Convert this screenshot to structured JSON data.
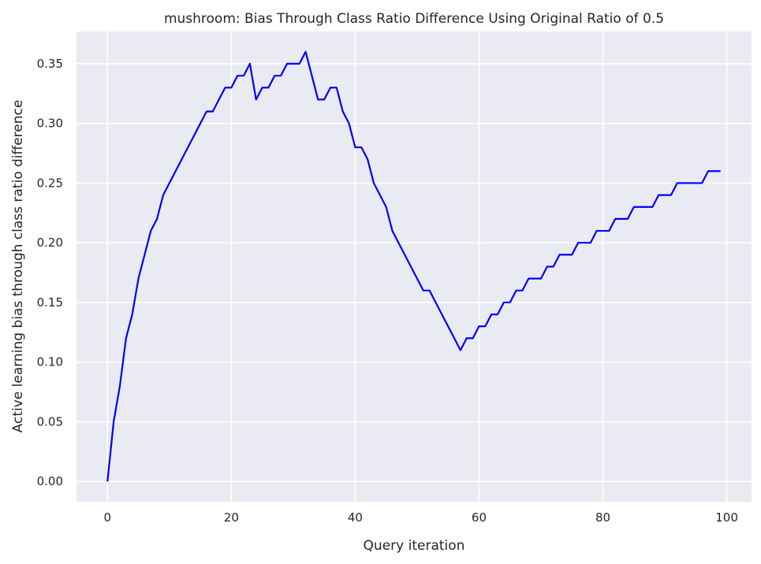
{
  "chart_data": {
    "type": "line",
    "title": "mushroom: Bias Through Class Ratio Difference Using Original Ratio of 0.5",
    "xlabel": "Query iteration",
    "ylabel": "Active learning bias through class ratio difference",
    "xlim": [
      -5,
      104
    ],
    "ylim": [
      -0.017,
      0.377
    ],
    "xticks": [
      0,
      20,
      40,
      60,
      80,
      100
    ],
    "xtick_labels": [
      "0",
      "20",
      "40",
      "60",
      "80",
      "100"
    ],
    "yticks": [
      0.0,
      0.05,
      0.1,
      0.15,
      0.2,
      0.25,
      0.3,
      0.35
    ],
    "ytick_labels": [
      "0.00",
      "0.05",
      "0.10",
      "0.15",
      "0.20",
      "0.25",
      "0.30",
      "0.35"
    ],
    "grid": true,
    "background": "#eaeaf2",
    "grid_color": "#ffffff",
    "series": [
      {
        "color": "#0000ff",
        "x": [
          0,
          1,
          2,
          3,
          4,
          5,
          6,
          7,
          8,
          9,
          10,
          11,
          12,
          13,
          14,
          15,
          16,
          17,
          18,
          19,
          20,
          21,
          22,
          23,
          24,
          25,
          26,
          27,
          28,
          29,
          30,
          31,
          32,
          33,
          34,
          35,
          36,
          37,
          38,
          39,
          40,
          41,
          42,
          43,
          44,
          45,
          46,
          47,
          48,
          49,
          50,
          51,
          52,
          53,
          54,
          55,
          56,
          57,
          58,
          59,
          60,
          61,
          62,
          63,
          64,
          65,
          66,
          67,
          68,
          69,
          70,
          71,
          72,
          73,
          74,
          75,
          76,
          77,
          78,
          79,
          80,
          81,
          82,
          83,
          84,
          85,
          86,
          87,
          88,
          89,
          90,
          91,
          92,
          93,
          94,
          95,
          96,
          97,
          98,
          99
        ],
        "values": [
          0.0,
          0.05,
          0.08,
          0.12,
          0.14,
          0.17,
          0.19,
          0.21,
          0.22,
          0.24,
          0.25,
          0.26,
          0.27,
          0.28,
          0.29,
          0.3,
          0.31,
          0.31,
          0.32,
          0.33,
          0.33,
          0.34,
          0.34,
          0.35,
          0.32,
          0.33,
          0.33,
          0.34,
          0.34,
          0.35,
          0.35,
          0.35,
          0.36,
          0.34,
          0.32,
          0.32,
          0.33,
          0.33,
          0.31,
          0.3,
          0.28,
          0.28,
          0.27,
          0.25,
          0.24,
          0.23,
          0.21,
          0.2,
          0.19,
          0.18,
          0.17,
          0.16,
          0.16,
          0.15,
          0.14,
          0.13,
          0.12,
          0.11,
          0.12,
          0.12,
          0.13,
          0.13,
          0.14,
          0.14,
          0.15,
          0.15,
          0.16,
          0.16,
          0.17,
          0.17,
          0.17,
          0.18,
          0.18,
          0.19,
          0.19,
          0.19,
          0.2,
          0.2,
          0.2,
          0.21,
          0.21,
          0.21,
          0.22,
          0.22,
          0.22,
          0.23,
          0.23,
          0.23,
          0.23,
          0.24,
          0.24,
          0.24,
          0.25,
          0.25,
          0.25,
          0.25,
          0.25,
          0.26,
          0.26,
          0.26
        ]
      }
    ]
  }
}
